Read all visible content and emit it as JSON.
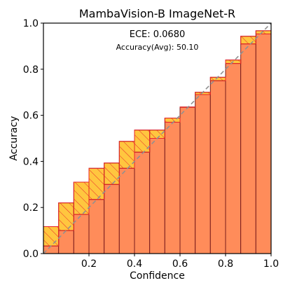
{
  "chart_data": {
    "type": "bar",
    "title": "MambaVision-B  ImageNet-R",
    "xlabel": "Confidence",
    "ylabel": "Accuracy",
    "xlim": [
      0,
      1
    ],
    "ylim": [
      0,
      1
    ],
    "x_ticks": [
      "0.2",
      "0.4",
      "0.6",
      "0.8",
      "1.0"
    ],
    "x_tick_values": [
      0.2,
      0.4,
      0.6,
      0.8,
      1.0
    ],
    "y_ticks": [
      "0.0",
      "0.2",
      "0.4",
      "0.6",
      "0.8",
      "1.0"
    ],
    "y_tick_values": [
      0.0,
      0.2,
      0.4,
      0.6,
      0.8,
      1.0
    ],
    "annotations": [
      "ECE: 0.0680",
      "Accuracy(Avg): 50.10"
    ],
    "bins": [
      0.0,
      0.0667,
      0.1333,
      0.2,
      0.2667,
      0.3333,
      0.4,
      0.4667,
      0.5333,
      0.6,
      0.6667,
      0.7333,
      0.8,
      0.8667,
      0.9333,
      1.0
    ],
    "accuracy": [
      0.033,
      0.1,
      0.17,
      0.235,
      0.3,
      0.37,
      0.44,
      0.5,
      0.57,
      0.635,
      0.69,
      0.75,
      0.825,
      0.91,
      0.953
    ],
    "gap_top": [
      0.117,
      0.22,
      0.31,
      0.37,
      0.393,
      0.487,
      0.536,
      0.536,
      0.588,
      0.636,
      0.7,
      0.765,
      0.84,
      0.943,
      0.967
    ],
    "grid": false,
    "diagonal": true,
    "colors": {
      "bar": "#ff8c5a",
      "gap": "#ffc02a",
      "gap_edge": "#e8262a",
      "bar_edge": "#7a1c1c",
      "diagonal": "#909090",
      "hatch": "#e8262a"
    }
  }
}
